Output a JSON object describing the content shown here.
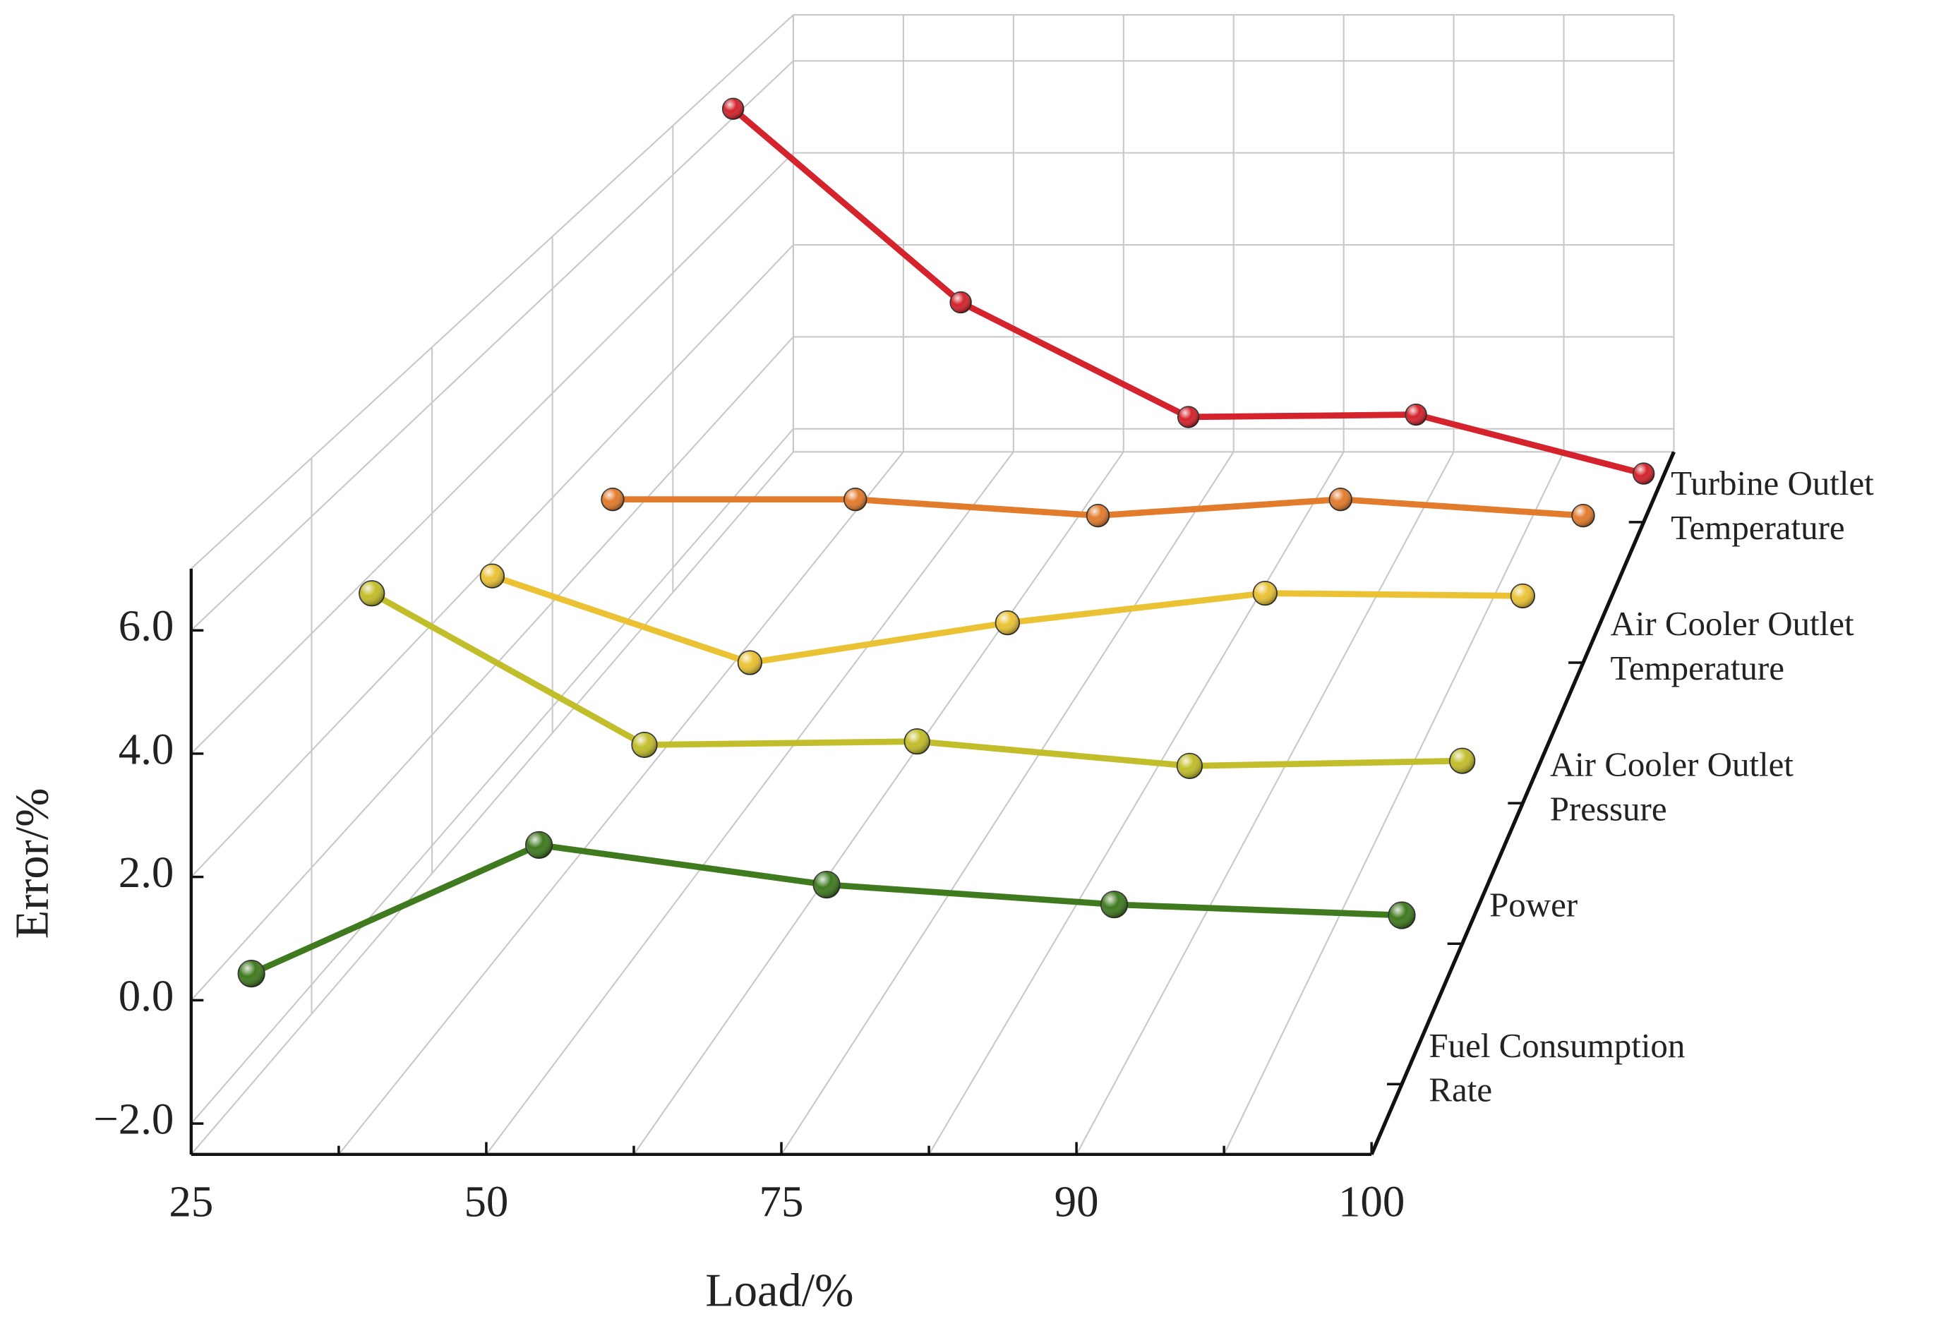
{
  "chart_data": {
    "type": "line",
    "x_label": "Load/%",
    "y_label": "Error/%",
    "categories": [
      "25",
      "50",
      "75",
      "90",
      "100"
    ],
    "ylim": [
      -2.5,
      7
    ],
    "yticks": [
      {
        "value": -2,
        "label": "−2.0"
      },
      {
        "value": 0,
        "label": "0.0"
      },
      {
        "value": 2,
        "label": "2.0"
      },
      {
        "value": 4,
        "label": "4.0"
      },
      {
        "value": 6,
        "label": "6.0"
      }
    ],
    "grid": true,
    "series": [
      {
        "name": "Fuel Consumption Rate",
        "color": "#3f7a1f",
        "values": [
          -0.66,
          1.48,
          0.82,
          0.49,
          0.31
        ]
      },
      {
        "name": "Power",
        "color": "#c2bd2a",
        "values": [
          3.65,
          0.99,
          1.05,
          0.62,
          0.71
        ]
      },
      {
        "name": "Air Cooler Outlet Pressure",
        "color": "#eac234",
        "values": [
          1.72,
          0.11,
          0.85,
          1.4,
          1.35
        ]
      },
      {
        "name": "Air Cooler Outlet Temperature",
        "color": "#e27b2c",
        "values": [
          0.72,
          0.72,
          0.4,
          0.72,
          0.4
        ]
      },
      {
        "name": "Turbine Outlet Temperature",
        "color": "#d4232c",
        "values": [
          6.19,
          2.12,
          -0.29,
          -0.24,
          -1.48
        ]
      }
    ]
  }
}
